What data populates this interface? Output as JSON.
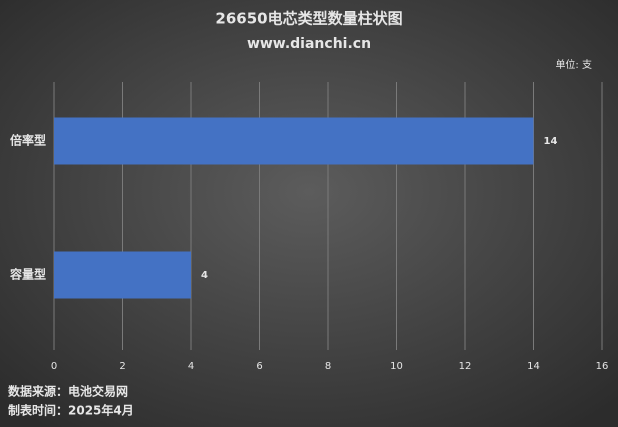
{
  "chart_data": {
    "type": "hbar",
    "title": "26650电芯类型数量柱状图",
    "subtitle": "www.dianchi.cn",
    "unit_label": "单位: 支",
    "categories": [
      "倍率型",
      "容量型"
    ],
    "values": [
      14,
      4
    ],
    "color": "#4472c4",
    "xlim": [
      0,
      16
    ],
    "xticks": [
      0,
      2,
      4,
      6,
      8,
      10,
      12,
      14,
      16
    ],
    "grid": true,
    "notes": [
      "数据来源：电池交易网",
      "制表时间：2025年4月"
    ]
  }
}
